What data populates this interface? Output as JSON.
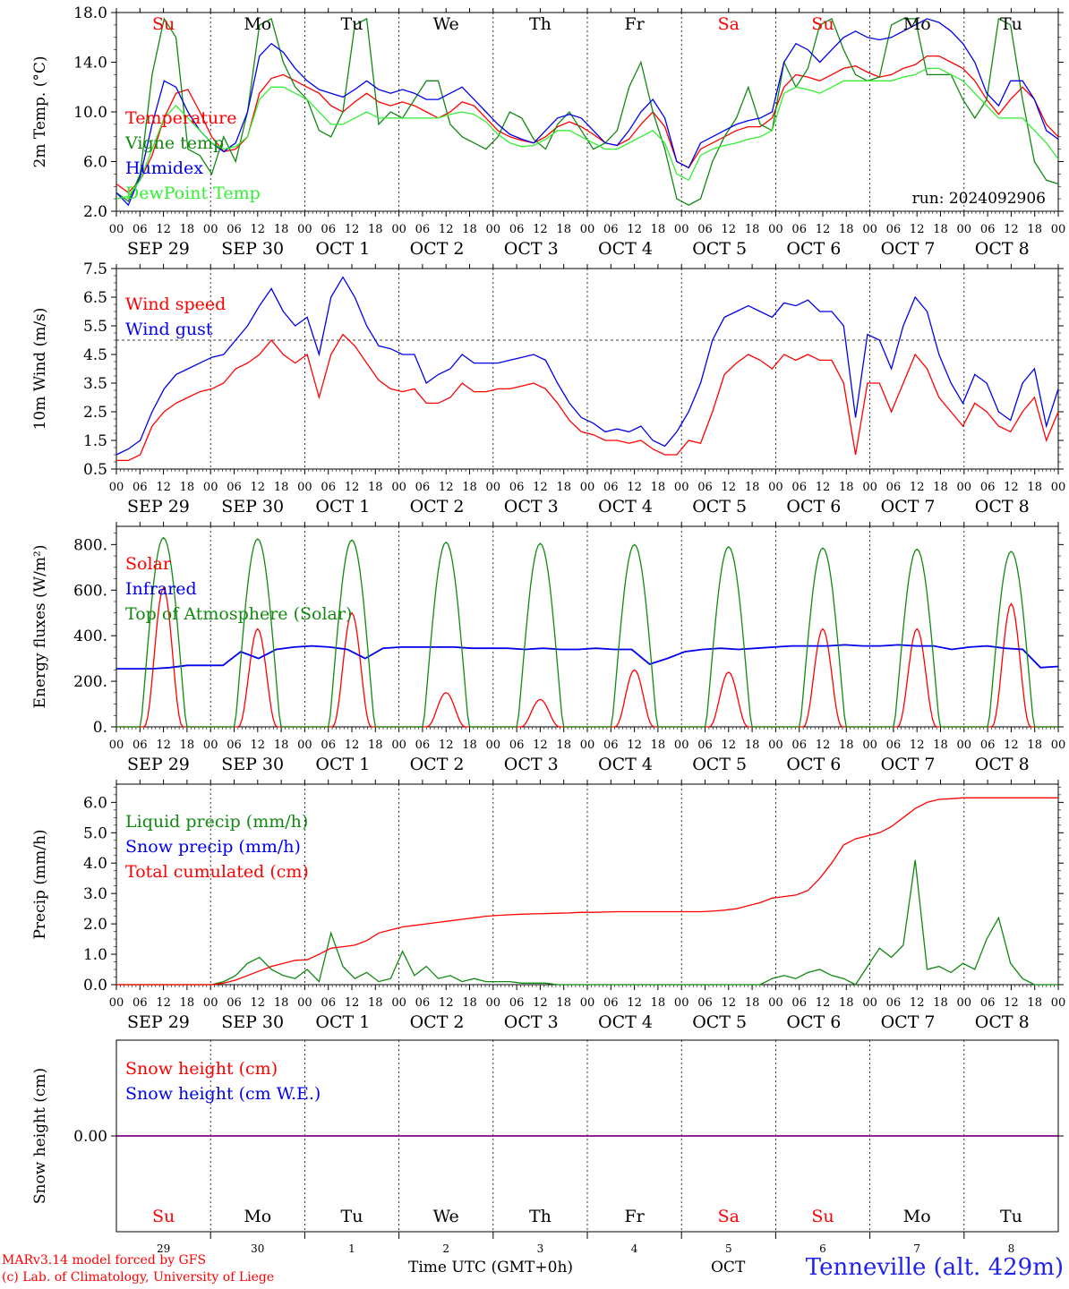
{
  "colors": {
    "red": "#ff0000",
    "green": "#118811",
    "blue": "#0000ee",
    "lightgreen": "#33ee33",
    "purple": "#7f007f",
    "black": "#000000"
  },
  "common": {
    "hour_ticks": [
      "00",
      "06",
      "12",
      "18"
    ],
    "day_labels": [
      "SEP 29",
      "SEP 30",
      "OCT  1",
      "OCT  2",
      "OCT  3",
      "OCT  4",
      "OCT  5",
      "OCT  6",
      "OCT  7",
      "OCT  8"
    ],
    "weekdays": [
      "Su",
      "Mo",
      "Tu",
      "We",
      "Th",
      "Fr",
      "Sa",
      "Su",
      "Mo",
      "Tu"
    ],
    "weekday_colors": [
      "red",
      "black",
      "black",
      "black",
      "black",
      "black",
      "red",
      "red",
      "black",
      "black"
    ],
    "day_numbers": [
      "29",
      "30",
      "1",
      "2",
      "3",
      "4",
      "5",
      "6",
      "7",
      "8"
    ],
    "days": 10
  },
  "footer": {
    "credit_line1": "MARv3.14 model forced by GFS",
    "credit_line2": "(c) Lab. of Climatology, University of Liege",
    "time_label": "Time UTC (GMT+0h)",
    "month_label": "OCT",
    "station": "Tenneville (alt. 429m)"
  },
  "chart_data": [
    {
      "type": "line",
      "ylabel": "2m Temp. (°C)",
      "ylim": [
        2.0,
        18.0
      ],
      "yticks": [
        "2.0",
        "6.0",
        "10.0",
        "14.0",
        "18.0"
      ],
      "run_label": "run: 2024092906",
      "show_weekdays": true,
      "series": [
        {
          "name": "Temperature",
          "color": "red",
          "values": [
            4.2,
            3.5,
            4.5,
            6.5,
            9.5,
            11.5,
            11.8,
            10.0,
            8.0,
            6.8,
            7.0,
            8.0,
            11.5,
            12.7,
            13.0,
            12.5,
            12.0,
            11.5,
            10.5,
            10.0,
            10.8,
            11.5,
            10.8,
            10.5,
            10.8,
            10.5,
            10.0,
            9.5,
            10.0,
            10.8,
            10.5,
            9.5,
            8.5,
            8.0,
            7.7,
            7.5,
            8.0,
            8.8,
            9.2,
            8.8,
            8.2,
            7.5,
            7.3,
            7.8,
            9.0,
            10.0,
            8.8,
            6.0,
            5.5,
            7.0,
            7.5,
            8.0,
            8.5,
            8.8,
            8.8,
            9.5,
            12.0,
            13.0,
            12.8,
            12.5,
            13.0,
            13.5,
            13.7,
            13.2,
            12.8,
            13.0,
            13.5,
            13.8,
            14.5,
            14.5,
            14.0,
            13.5,
            12.5,
            11.0,
            9.8,
            11.0,
            12.0,
            11.0,
            9.0,
            8.0
          ]
        },
        {
          "name": "Vigne temp",
          "color": "green",
          "values": [
            3.5,
            2.8,
            5.0,
            13.0,
            17.5,
            16.0,
            7.0,
            6.5,
            5.0,
            8.0,
            6.0,
            10.0,
            17.0,
            17.5,
            14.0,
            12.0,
            11.0,
            8.5,
            8.0,
            10.0,
            17.0,
            17.5,
            9.0,
            10.0,
            9.5,
            11.0,
            12.5,
            12.5,
            9.0,
            8.0,
            7.5,
            7.0,
            8.0,
            10.0,
            9.5,
            7.8,
            7.0,
            9.0,
            10.0,
            8.5,
            7.0,
            7.5,
            8.5,
            12.0,
            14.0,
            10.0,
            7.0,
            3.0,
            2.5,
            3.0,
            6.0,
            8.0,
            9.5,
            12.0,
            9.0,
            8.5,
            14.0,
            12.0,
            13.5,
            17.0,
            17.5,
            15.0,
            13.0,
            12.5,
            12.8,
            17.0,
            17.5,
            17.5,
            13.0,
            13.0,
            13.0,
            11.0,
            9.5,
            11.0,
            17.5,
            17.0,
            11.0,
            6.0,
            4.5,
            4.2
          ]
        },
        {
          "name": "Humidex",
          "color": "blue",
          "values": [
            3.5,
            2.5,
            4.8,
            9.0,
            12.5,
            12.0,
            10.0,
            8.5,
            7.5,
            6.8,
            7.5,
            10.0,
            14.5,
            15.5,
            14.8,
            13.5,
            12.5,
            11.8,
            11.5,
            11.2,
            11.8,
            12.5,
            11.8,
            11.5,
            11.8,
            11.5,
            11.0,
            11.0,
            11.5,
            12.0,
            11.0,
            10.0,
            9.0,
            8.2,
            7.8,
            7.5,
            8.5,
            9.5,
            9.8,
            9.5,
            8.5,
            7.5,
            7.3,
            8.5,
            10.0,
            11.0,
            9.5,
            6.0,
            5.5,
            7.5,
            8.0,
            8.5,
            9.0,
            9.3,
            9.5,
            10.0,
            14.0,
            15.5,
            15.0,
            14.0,
            15.0,
            16.0,
            16.5,
            16.0,
            15.8,
            16.0,
            16.5,
            17.0,
            17.5,
            17.2,
            16.5,
            15.5,
            14.0,
            11.5,
            10.5,
            12.5,
            12.5,
            11.0,
            8.5,
            7.8
          ]
        },
        {
          "name": "DewPoint Temp",
          "color": "lightgreen",
          "values": [
            3.0,
            3.2,
            4.5,
            7.0,
            9.5,
            10.5,
            9.5,
            8.5,
            7.5,
            7.0,
            7.2,
            8.0,
            11.0,
            12.0,
            12.0,
            11.5,
            11.0,
            10.0,
            9.0,
            9.0,
            9.5,
            10.0,
            9.5,
            9.5,
            9.5,
            9.5,
            9.5,
            9.5,
            9.8,
            10.0,
            9.8,
            9.2,
            8.2,
            7.5,
            7.2,
            7.3,
            7.8,
            8.5,
            8.5,
            8.0,
            7.5,
            7.0,
            7.0,
            7.5,
            8.0,
            8.5,
            7.5,
            5.0,
            4.5,
            6.5,
            7.0,
            7.3,
            7.5,
            7.8,
            8.0,
            8.5,
            11.5,
            12.0,
            11.8,
            11.5,
            12.0,
            12.5,
            12.5,
            12.5,
            12.5,
            12.5,
            12.8,
            13.0,
            13.5,
            13.5,
            13.0,
            12.5,
            11.5,
            10.5,
            9.5,
            9.5,
            9.5,
            8.5,
            7.5,
            6.2
          ]
        }
      ]
    },
    {
      "type": "line",
      "ylabel": "10m Wind (m/s)",
      "ylim": [
        0.5,
        7.5
      ],
      "yticks": [
        "0.5",
        "1.5",
        "2.5",
        "3.5",
        "4.5",
        "5.5",
        "6.5",
        "7.5"
      ],
      "hline": 5.0,
      "series": [
        {
          "name": "Wind speed",
          "color": "red",
          "values": [
            0.8,
            0.8,
            1.0,
            2.0,
            2.5,
            2.8,
            3.0,
            3.2,
            3.3,
            3.5,
            4.0,
            4.2,
            4.5,
            5.0,
            4.5,
            4.2,
            4.5,
            3.0,
            4.5,
            5.2,
            4.8,
            4.2,
            3.6,
            3.3,
            3.2,
            3.3,
            2.8,
            2.8,
            3.0,
            3.5,
            3.2,
            3.2,
            3.3,
            3.3,
            3.4,
            3.5,
            3.3,
            2.8,
            2.2,
            1.8,
            1.7,
            1.5,
            1.5,
            1.4,
            1.5,
            1.2,
            1.0,
            1.0,
            1.5,
            1.4,
            2.5,
            3.8,
            4.2,
            4.5,
            4.3,
            4.0,
            4.5,
            4.3,
            4.5,
            4.3,
            4.3,
            3.5,
            1.0,
            3.5,
            3.5,
            2.5,
            3.5,
            4.5,
            4.0,
            3.0,
            2.5,
            2.0,
            2.8,
            2.5,
            2.0,
            1.8,
            2.5,
            3.0,
            1.5,
            2.5
          ]
        },
        {
          "name": "Wind gust",
          "color": "blue",
          "values": [
            1.0,
            1.2,
            1.5,
            2.5,
            3.3,
            3.8,
            4.0,
            4.2,
            4.4,
            4.5,
            5.0,
            5.5,
            6.2,
            6.8,
            6.0,
            5.5,
            5.8,
            4.5,
            6.5,
            7.2,
            6.5,
            5.5,
            4.8,
            4.7,
            4.5,
            4.5,
            3.5,
            3.8,
            4.0,
            4.5,
            4.2,
            4.2,
            4.2,
            4.3,
            4.4,
            4.5,
            4.3,
            3.5,
            2.8,
            2.3,
            2.1,
            1.8,
            1.9,
            1.8,
            2.0,
            1.5,
            1.3,
            1.8,
            2.5,
            3.5,
            5.0,
            5.8,
            6.0,
            6.2,
            6.0,
            5.8,
            6.3,
            6.2,
            6.4,
            6.0,
            6.0,
            5.5,
            2.3,
            5.2,
            5.0,
            4.0,
            5.5,
            6.5,
            6.0,
            4.5,
            3.5,
            2.8,
            3.8,
            3.5,
            2.5,
            2.2,
            3.5,
            4.0,
            2.0,
            3.3
          ]
        }
      ]
    },
    {
      "type": "line",
      "ylabel": "Energy fluxes (W/m²)",
      "ylim": [
        0,
        880
      ],
      "yticks": [
        "0.",
        "200.",
        "400.",
        "600.",
        "800."
      ],
      "series": [
        {
          "name": "Solar",
          "color": "red",
          "peaks": [
            610,
            430,
            500,
            150,
            120,
            250,
            240,
            430,
            430,
            540
          ]
        },
        {
          "name": "Infrared",
          "color": "blue",
          "values": [
            255,
            255,
            255,
            260,
            270,
            270,
            270,
            330,
            300,
            340,
            350,
            355,
            350,
            340,
            300,
            345,
            350,
            350,
            350,
            350,
            345,
            345,
            345,
            340,
            345,
            340,
            340,
            345,
            340,
            340,
            275,
            300,
            330,
            340,
            345,
            340,
            345,
            350,
            355,
            355,
            355,
            360,
            355,
            355,
            360,
            355,
            355,
            340,
            350,
            355,
            345,
            340,
            260,
            265
          ]
        },
        {
          "name": "Top of Atmosphere (Solar)",
          "color": "green",
          "peaks": [
            830,
            825,
            820,
            810,
            805,
            800,
            790,
            785,
            780,
            770
          ]
        }
      ]
    },
    {
      "type": "line",
      "ylabel": "Precip (mm/h)",
      "ylim": [
        0,
        6.6
      ],
      "yticks": [
        "0.0",
        "1.0",
        "2.0",
        "3.0",
        "4.0",
        "5.0",
        "6.0"
      ],
      "series": [
        {
          "name": "Liquid precip (mm/h)",
          "color": "green",
          "values": [
            0,
            0,
            0,
            0,
            0,
            0,
            0,
            0,
            0,
            0.1,
            0.3,
            0.7,
            0.9,
            0.5,
            0.3,
            0.2,
            0.5,
            0.1,
            1.7,
            0.6,
            0.2,
            0.4,
            0.1,
            0.2,
            1.1,
            0.3,
            0.6,
            0.2,
            0.3,
            0.1,
            0.2,
            0.1,
            0.1,
            0.1,
            0.05,
            0.05,
            0.05,
            0,
            0,
            0,
            0,
            0,
            0,
            0,
            0,
            0,
            0,
            0,
            0,
            0,
            0,
            0,
            0,
            0,
            0,
            0.2,
            0.3,
            0.2,
            0.4,
            0.5,
            0.3,
            0.2,
            0,
            0.6,
            1.2,
            0.9,
            1.3,
            4.1,
            0.5,
            0.6,
            0.4,
            0.7,
            0.5,
            1.5,
            2.2,
            0.7,
            0.2,
            0,
            0,
            0
          ]
        },
        {
          "name": "Snow precip (mm/h)",
          "color": "blue",
          "values": []
        },
        {
          "name": "Total cumulated (cm)",
          "color": "red",
          "values": [
            0,
            0,
            0,
            0,
            0,
            0,
            0,
            0,
            0,
            0.05,
            0.15,
            0.3,
            0.45,
            0.6,
            0.7,
            0.8,
            0.82,
            1.0,
            1.2,
            1.25,
            1.3,
            1.45,
            1.7,
            1.8,
            1.9,
            1.95,
            2.0,
            2.05,
            2.1,
            2.15,
            2.2,
            2.25,
            2.28,
            2.3,
            2.32,
            2.33,
            2.34,
            2.35,
            2.36,
            2.38,
            2.38,
            2.39,
            2.4,
            2.4,
            2.4,
            2.4,
            2.4,
            2.4,
            2.4,
            2.4,
            2.42,
            2.45,
            2.5,
            2.6,
            2.7,
            2.85,
            2.9,
            2.95,
            3.1,
            3.5,
            4.0,
            4.6,
            4.8,
            4.9,
            5.0,
            5.2,
            5.5,
            5.8,
            6.0,
            6.1,
            6.12,
            6.15,
            6.15,
            6.15,
            6.15,
            6.15,
            6.15,
            6.15,
            6.15,
            6.15
          ]
        }
      ]
    },
    {
      "type": "line",
      "ylabel": "Snow height (cm)",
      "ylim": [
        -1,
        1
      ],
      "yticks": [
        "0.00"
      ],
      "series": [
        {
          "name": "Snow height (cm)",
          "color": "red",
          "values": [
            0,
            0
          ]
        },
        {
          "name": "Snow height (cm W.E.)",
          "color": "blue",
          "values": [
            0,
            0
          ]
        }
      ]
    }
  ]
}
